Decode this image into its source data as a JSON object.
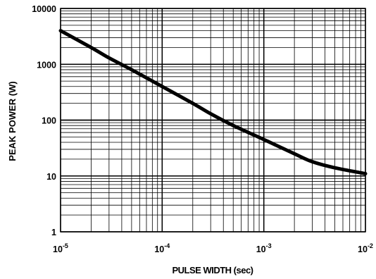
{
  "chart_data": {
    "type": "line",
    "title": "",
    "xlabel": "PULSE WIDTH (sec)",
    "ylabel": "PEAK POWER (W)",
    "x_scale": "log",
    "y_scale": "log",
    "xlim": [
      1e-05,
      0.01
    ],
    "ylim": [
      1,
      10000
    ],
    "grid": true,
    "x_ticks": [
      {
        "base": "10",
        "exp": "-5"
      },
      {
        "base": "10",
        "exp": "-4"
      },
      {
        "base": "10",
        "exp": "-3"
      },
      {
        "base": "10",
        "exp": "-2"
      }
    ],
    "y_ticks": [
      "1",
      "10",
      "100",
      "1000",
      "10000"
    ],
    "series": [
      {
        "x": [
          1e-05,
          2e-05,
          3e-05,
          5e-05,
          0.0001,
          0.0002,
          0.0003,
          0.0005,
          0.001,
          0.002,
          0.003,
          0.005,
          0.01
        ],
        "y": [
          4000,
          2000,
          1300,
          800,
          400,
          200,
          130,
          80,
          45,
          25,
          18,
          14,
          11
        ]
      }
    ]
  },
  "colors": {
    "line": "#000000",
    "grid": "#000000",
    "background": "#ffffff"
  }
}
